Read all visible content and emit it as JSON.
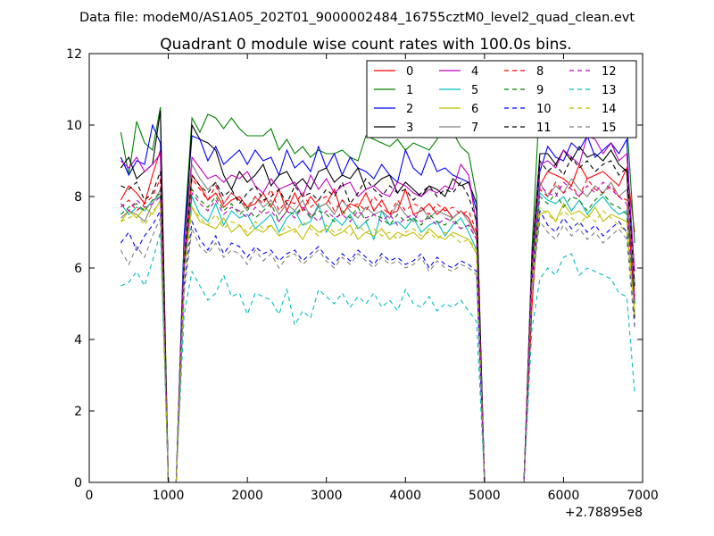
{
  "chart_data": {
    "type": "line",
    "suptitle": "Data file: modeM0/AS1A05_202T01_9000002484_16755cztM0_level2_quad_clean.evt",
    "title": "Quadrant 0 module wise count rates with 100.0s bins.",
    "xlabel": "",
    "ylabel": "",
    "xlim": [
      0,
      7000
    ],
    "ylim": [
      0,
      12
    ],
    "x_offset_label": "+2.78895e8",
    "x_ticks": [
      0,
      1000,
      2000,
      3000,
      4000,
      5000,
      6000,
      7000
    ],
    "y_ticks": [
      0,
      2,
      4,
      6,
      8,
      10,
      12
    ],
    "grid": false,
    "legend_position": "top-right",
    "x": [
      400,
      500,
      600,
      700,
      800,
      900,
      1000,
      1100,
      1200,
      1300,
      1400,
      1500,
      1600,
      1700,
      1800,
      1900,
      2000,
      2100,
      2200,
      2300,
      2400,
      2500,
      2600,
      2700,
      2800,
      2900,
      3000,
      3100,
      3200,
      3300,
      3400,
      3500,
      3600,
      3700,
      3800,
      3900,
      4000,
      4100,
      4200,
      4300,
      4400,
      4500,
      4600,
      4700,
      4800,
      4900,
      5000,
      5100,
      5200,
      5300,
      5400,
      5500,
      5600,
      5700,
      5800,
      5900,
      6000,
      6100,
      6200,
      6300,
      6400,
      6500,
      6600,
      6700,
      6800,
      6900
    ],
    "series": [
      {
        "name": "0",
        "color": "#ff0000",
        "dash": false,
        "values": [
          7.9,
          8.3,
          8.1,
          7.8,
          8.6,
          9.3,
          0,
          0,
          6.1,
          8.6,
          8.3,
          7.9,
          8.1,
          7.7,
          7.9,
          8.0,
          7.7,
          7.8,
          8.1,
          7.7,
          8.2,
          7.6,
          8.1,
          7.6,
          8.0,
          7.7,
          7.8,
          8.2,
          7.5,
          7.8,
          7.7,
          8.1,
          7.6,
          7.9,
          7.5,
          7.6,
          8.2,
          7.5,
          7.6,
          7.8,
          7.5,
          7.7,
          7.4,
          7.6,
          7.4,
          6.9,
          0,
          0,
          0,
          0,
          0,
          0,
          4.9,
          8.3,
          8.7,
          8.6,
          8.5,
          8.3,
          8.9,
          8.5,
          8.6,
          8.7,
          8.5,
          8.3,
          8.8,
          7.0
        ]
      },
      {
        "name": "1",
        "color": "#008000",
        "dash": false,
        "values": [
          9.8,
          8.6,
          10.1,
          9.5,
          9.3,
          10.5,
          0,
          0,
          6.9,
          10.2,
          9.8,
          10.3,
          10.2,
          9.9,
          10.2,
          9.9,
          9.7,
          9.7,
          9.7,
          9.9,
          9.3,
          9.6,
          9.2,
          9.4,
          9.1,
          9.3,
          9.2,
          9.2,
          9.3,
          9.1,
          9.0,
          9.7,
          9.6,
          9.5,
          9.4,
          9.6,
          9.3,
          9.5,
          9.4,
          9.3,
          9.6,
          10.2,
          9.8,
          9.4,
          9.2,
          8.0,
          0,
          0,
          0,
          0,
          0,
          0,
          6.5,
          10.8,
          10.5,
          10.6,
          10.2,
          10.5,
          10.2,
          10.0,
          10.1,
          10.3,
          10.0,
          10.2,
          10.1,
          6.7
        ]
      },
      {
        "name": "2",
        "color": "#0000ff",
        "dash": false,
        "values": [
          9.1,
          8.6,
          9.0,
          8.9,
          10.0,
          9.5,
          0,
          0,
          6.9,
          9.7,
          9.6,
          9.0,
          9.4,
          8.9,
          9.1,
          9.3,
          8.9,
          9.3,
          9.0,
          9.1,
          8.6,
          9.3,
          8.8,
          9.0,
          8.7,
          9.4,
          8.8,
          9.2,
          8.6,
          9.1,
          8.8,
          8.7,
          8.5,
          8.9,
          8.6,
          8.4,
          9.3,
          8.8,
          8.6,
          9.2,
          8.7,
          8.8,
          8.6,
          8.5,
          8.4,
          7.6,
          0,
          0,
          0,
          0,
          0,
          0,
          6.2,
          8.7,
          9.4,
          9.1,
          9.0,
          9.5,
          9.3,
          9.7,
          9.1,
          9.3,
          9.5,
          9.2,
          9.6,
          5.0
        ]
      },
      {
        "name": "3",
        "color": "#000000",
        "dash": false,
        "values": [
          8.8,
          9.1,
          8.5,
          8.7,
          8.9,
          10.4,
          0,
          0,
          6.3,
          10.0,
          9.6,
          9.5,
          9.3,
          8.6,
          8.2,
          8.7,
          8.4,
          8.6,
          8.9,
          8.3,
          8.6,
          8.7,
          8.3,
          8.5,
          8.2,
          8.7,
          8.8,
          8.4,
          8.6,
          8.5,
          8.8,
          8.2,
          8.3,
          8.5,
          8.6,
          8.1,
          8.4,
          8.2,
          8.0,
          8.3,
          8.2,
          8.0,
          8.5,
          8.3,
          8.4,
          7.8,
          0,
          0,
          0,
          0,
          0,
          0,
          6.3,
          9.2,
          9.2,
          8.9,
          9.3,
          9.0,
          9.4,
          9.1,
          9.2,
          9.0,
          9.3,
          8.9,
          8.7,
          4.6
        ]
      },
      {
        "name": "4",
        "color": "#bf00bf",
        "dash": false,
        "values": [
          9.0,
          8.8,
          9.1,
          8.7,
          8.9,
          9.2,
          0,
          0,
          6.5,
          9.1,
          8.8,
          8.5,
          8.6,
          8.4,
          8.6,
          8.5,
          8.7,
          8.3,
          8.1,
          8.5,
          8.2,
          8.3,
          8.4,
          8.0,
          8.6,
          8.2,
          8.5,
          8.1,
          8.3,
          8.4,
          8.0,
          8.2,
          8.3,
          8.1,
          8.0,
          8.4,
          8.3,
          8.1,
          8.0,
          8.2,
          8.1,
          8.3,
          8.2,
          8.9,
          8.6,
          7.2,
          0,
          0,
          0,
          0,
          0,
          0,
          6.2,
          8.9,
          9.0,
          8.8,
          9.3,
          9.1,
          8.9,
          9.7,
          9.6,
          9.2,
          9.5,
          9.0,
          9.2,
          5.9
        ]
      },
      {
        "name": "5",
        "color": "#00bfbf",
        "dash": false,
        "values": [
          7.8,
          7.5,
          7.7,
          7.6,
          7.9,
          8.0,
          0,
          0,
          5.9,
          8.0,
          7.5,
          7.3,
          7.8,
          7.2,
          7.6,
          7.4,
          7.5,
          7.1,
          7.3,
          7.5,
          7.0,
          7.4,
          7.6,
          7.2,
          7.3,
          7.8,
          7.0,
          7.4,
          7.2,
          7.5,
          7.1,
          7.3,
          6.8,
          7.6,
          7.2,
          7.3,
          7.1,
          7.4,
          7.0,
          7.2,
          7.3,
          6.9,
          7.2,
          7.4,
          7.0,
          6.5,
          0,
          0,
          0,
          0,
          0,
          0,
          5.8,
          8.1,
          7.9,
          7.8,
          8.0,
          7.6,
          7.9,
          7.5,
          7.8,
          8.0,
          7.7,
          7.5,
          7.6,
          5.4
        ]
      },
      {
        "name": "6",
        "color": "#bfbf00",
        "dash": false,
        "values": [
          7.3,
          7.6,
          7.4,
          7.7,
          7.5,
          7.9,
          0,
          0,
          6.0,
          7.7,
          7.3,
          7.2,
          7.1,
          7.4,
          7.0,
          7.2,
          6.9,
          7.1,
          7.0,
          7.2,
          6.9,
          7.0,
          7.1,
          6.8,
          7.2,
          7.0,
          7.1,
          6.9,
          7.0,
          7.2,
          6.8,
          7.0,
          6.9,
          7.1,
          6.8,
          7.0,
          6.9,
          7.0,
          6.8,
          7.1,
          6.9,
          6.8,
          7.0,
          6.9,
          6.8,
          6.4,
          0,
          0,
          0,
          0,
          0,
          0,
          5.7,
          7.5,
          7.6,
          7.3,
          7.8,
          7.5,
          7.6,
          7.4,
          7.7,
          7.3,
          7.5,
          7.4,
          7.3,
          4.8
        ]
      },
      {
        "name": "7",
        "color": "#808080",
        "dash": false,
        "values": [
          7.4,
          7.6,
          7.5,
          7.3,
          7.8,
          8.2,
          0,
          0,
          6.4,
          8.9,
          8.5,
          8.2,
          8.4,
          7.8,
          8.1,
          7.9,
          7.6,
          8.0,
          7.7,
          7.9,
          7.5,
          7.8,
          7.6,
          7.9,
          7.4,
          7.7,
          7.8,
          7.5,
          7.9,
          7.6,
          7.4,
          7.7,
          7.5,
          7.6,
          7.4,
          7.8,
          7.5,
          7.3,
          7.7,
          7.4,
          7.6,
          7.5,
          7.4,
          7.6,
          7.3,
          6.9,
          0,
          0,
          0,
          0,
          0,
          0,
          6.0,
          8.4,
          8.0,
          8.3,
          8.1,
          8.5,
          8.2,
          8.0,
          8.3,
          8.1,
          8.4,
          8.0,
          8.2,
          5.6
        ]
      },
      {
        "name": "8",
        "color": "#ff0000",
        "dash": true,
        "values": [
          7.7,
          7.9,
          7.6,
          7.8,
          8.0,
          8.5,
          0,
          0,
          6.2,
          8.5,
          8.2,
          7.9,
          8.3,
          7.8,
          8.1,
          7.9,
          7.7,
          8.0,
          7.8,
          8.2,
          7.6,
          7.9,
          7.8,
          8.1,
          7.7,
          7.9,
          8.0,
          7.6,
          7.9,
          7.7,
          7.8,
          7.6,
          8.0,
          7.7,
          7.5,
          7.9,
          7.6,
          7.8,
          7.7,
          7.5,
          7.8,
          7.6,
          7.7,
          7.5,
          7.6,
          7.0,
          0,
          0,
          0,
          0,
          0,
          0,
          5.9,
          8.2,
          8.0,
          8.4,
          8.1,
          8.3,
          8.0,
          8.5,
          8.2,
          8.1,
          8.3,
          8.0,
          7.9,
          5.2
        ]
      },
      {
        "name": "9",
        "color": "#008000",
        "dash": true,
        "values": [
          7.5,
          7.7,
          7.8,
          7.6,
          7.9,
          8.1,
          0,
          0,
          6.0,
          8.2,
          7.9,
          7.7,
          8.0,
          7.6,
          7.8,
          7.5,
          7.7,
          7.4,
          7.6,
          7.8,
          7.3,
          7.6,
          7.5,
          7.7,
          7.4,
          7.6,
          7.5,
          7.3,
          7.6,
          7.4,
          7.7,
          7.3,
          7.5,
          7.4,
          7.2,
          7.5,
          7.3,
          7.4,
          7.2,
          7.5,
          7.3,
          7.2,
          7.4,
          7.1,
          7.2,
          6.8,
          0,
          0,
          0,
          0,
          0,
          0,
          5.8,
          8.0,
          7.8,
          8.1,
          7.7,
          8.0,
          7.9,
          7.6,
          7.9,
          8.1,
          7.8,
          7.7,
          7.5,
          5.0
        ]
      },
      {
        "name": "10",
        "color": "#0000ff",
        "dash": true,
        "values": [
          6.7,
          7.0,
          6.5,
          6.9,
          7.2,
          7.6,
          0,
          0,
          5.5,
          7.3,
          6.8,
          6.5,
          6.9,
          6.4,
          6.7,
          6.6,
          6.3,
          6.6,
          6.4,
          6.5,
          6.2,
          6.4,
          6.5,
          6.2,
          6.4,
          6.6,
          6.3,
          6.1,
          6.4,
          6.2,
          6.5,
          6.3,
          6.1,
          6.4,
          6.2,
          6.3,
          6.1,
          6.2,
          6.4,
          6.0,
          6.3,
          6.1,
          6.0,
          6.2,
          6.1,
          5.9,
          0,
          0,
          0,
          0,
          0,
          0,
          5.6,
          7.6,
          7.2,
          7.0,
          7.4,
          7.1,
          7.3,
          7.0,
          7.2,
          6.9,
          7.1,
          7.3,
          7.0,
          4.4
        ]
      },
      {
        "name": "11",
        "color": "#000000",
        "dash": true,
        "values": [
          8.3,
          8.2,
          8.4,
          7.9,
          8.1,
          8.7,
          0,
          0,
          6.2,
          8.6,
          8.3,
          8.1,
          8.4,
          8.0,
          8.2,
          7.8,
          8.1,
          8.3,
          7.9,
          8.0,
          8.2,
          7.8,
          8.3,
          8.0,
          8.1,
          7.9,
          8.2,
          8.0,
          8.4,
          7.8,
          8.1,
          8.5,
          8.2,
          8.0,
          8.3,
          8.1,
          8.2,
          7.9,
          8.1,
          8.3,
          8.0,
          8.2,
          8.1,
          8.4,
          8.0,
          7.3,
          0,
          0,
          0,
          0,
          0,
          0,
          6.1,
          9.0,
          8.7,
          8.9,
          8.6,
          9.1,
          8.8,
          9.0,
          8.7,
          8.9,
          9.0,
          8.6,
          8.8,
          5.5
        ]
      },
      {
        "name": "12",
        "color": "#bf00bf",
        "dash": true,
        "values": [
          7.8,
          7.6,
          7.9,
          7.7,
          7.8,
          8.0,
          0,
          0,
          6.1,
          8.1,
          7.8,
          7.6,
          7.9,
          7.5,
          7.7,
          7.6,
          7.4,
          7.7,
          7.5,
          7.6,
          7.3,
          7.6,
          7.4,
          7.7,
          7.5,
          7.3,
          7.6,
          7.4,
          7.5,
          7.3,
          7.6,
          7.4,
          7.5,
          7.3,
          7.5,
          7.2,
          7.4,
          7.5,
          7.3,
          7.4,
          7.2,
          7.4,
          7.3,
          7.1,
          7.2,
          6.8,
          0,
          0,
          0,
          0,
          0,
          0,
          5.9,
          8.3,
          8.1,
          8.0,
          8.4,
          8.2,
          8.0,
          8.3,
          8.1,
          8.4,
          8.2,
          8.0,
          7.8,
          5.1
        ]
      },
      {
        "name": "13",
        "color": "#00bfbf",
        "dash": true,
        "values": [
          5.5,
          5.6,
          5.9,
          5.5,
          6.2,
          7.0,
          0,
          0,
          4.7,
          5.9,
          5.5,
          5.1,
          5.3,
          5.8,
          5.2,
          5.3,
          4.7,
          5.3,
          5.2,
          5.1,
          4.7,
          5.4,
          4.4,
          4.8,
          4.6,
          5.4,
          5.2,
          5.0,
          5.3,
          4.9,
          5.2,
          5.0,
          5.3,
          4.9,
          5.1,
          4.8,
          5.4,
          5.0,
          4.9,
          5.2,
          4.8,
          5.0,
          4.9,
          5.1,
          4.8,
          4.5,
          0,
          0,
          0,
          0,
          0,
          0,
          4.3,
          5.7,
          6.0,
          5.8,
          6.3,
          6.4,
          5.8,
          6.0,
          5.9,
          5.8,
          5.7,
          5.3,
          5.2,
          2.5
        ]
      },
      {
        "name": "14",
        "color": "#bfbf00",
        "dash": true,
        "values": [
          7.3,
          7.4,
          7.5,
          7.2,
          7.6,
          7.8,
          0,
          0,
          5.7,
          7.7,
          7.4,
          7.2,
          7.5,
          7.1,
          7.3,
          7.2,
          7.0,
          7.3,
          7.1,
          7.2,
          6.9,
          7.2,
          7.0,
          7.3,
          7.1,
          6.9,
          7.2,
          7.0,
          7.1,
          6.9,
          7.2,
          7.0,
          7.1,
          6.9,
          7.0,
          6.8,
          7.0,
          7.1,
          6.9,
          7.0,
          6.8,
          7.0,
          6.9,
          6.7,
          6.8,
          6.5,
          0,
          0,
          0,
          0,
          0,
          0,
          5.5,
          7.7,
          7.5,
          7.3,
          7.6,
          7.4,
          7.2,
          7.5,
          7.3,
          7.6,
          7.4,
          7.2,
          7.0,
          4.7
        ]
      },
      {
        "name": "15",
        "color": "#808080",
        "dash": true,
        "values": [
          6.5,
          6.1,
          6.6,
          6.3,
          6.9,
          7.4,
          0,
          0,
          5.3,
          7.1,
          6.6,
          6.4,
          6.7,
          6.3,
          6.5,
          6.4,
          6.1,
          6.5,
          6.2,
          6.4,
          6.0,
          6.3,
          6.4,
          6.1,
          6.3,
          6.5,
          6.2,
          6.0,
          6.3,
          6.1,
          6.4,
          6.2,
          6.0,
          6.3,
          6.1,
          6.2,
          6.0,
          6.1,
          6.3,
          5.9,
          6.2,
          6.0,
          5.9,
          6.1,
          6.0,
          5.8,
          0,
          0,
          0,
          0,
          0,
          0,
          5.4,
          7.3,
          7.0,
          6.8,
          7.2,
          6.9,
          7.1,
          6.8,
          7.0,
          6.7,
          6.9,
          7.1,
          6.8,
          4.3
        ]
      }
    ]
  }
}
